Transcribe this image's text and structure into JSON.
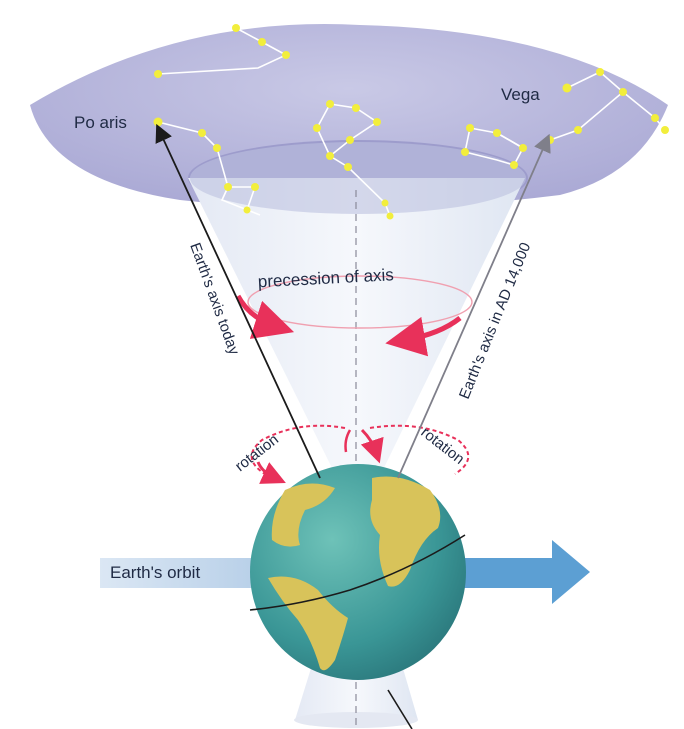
{
  "labels": {
    "polaris": "Po aris",
    "vega": "Vega",
    "precession": "precession  of axis",
    "axis_today": "Earth's axis today",
    "axis_future": "Earth's axis in AD 14,000",
    "rotation_left": "rotation",
    "rotation_right": "rotation",
    "earth_orbit": "Earth's orbit"
  },
  "colors": {
    "sky": "#b9b8db",
    "sky_inner": "#9c9cc9",
    "cone": "#e9eef6",
    "star": "#f2ee3c",
    "constellation_line": "#ffffff",
    "arrow_red": "#e8315a",
    "ocean": "#3d9a9a",
    "land": "#d8c35a",
    "orbit_arrow": "#5c9fd3",
    "axis_today": "#1b1b1b",
    "axis_future": "#7f7f8a"
  },
  "icons": [
    "star-icon",
    "earth-globe-icon",
    "arrow-icon"
  ]
}
